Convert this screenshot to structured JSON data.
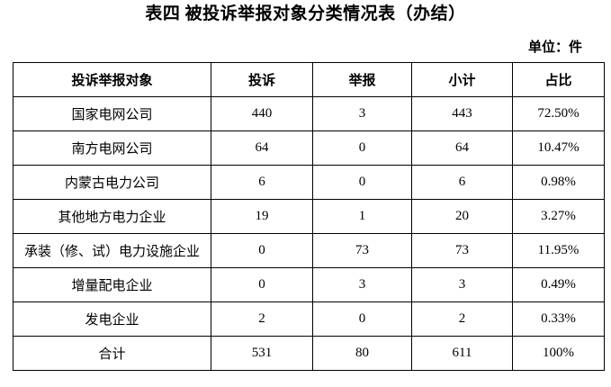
{
  "page": {
    "title": "表四 被投诉举报对象分类情况表（办结）",
    "unit_label": "单位：件"
  },
  "table": {
    "headers": [
      "投诉举报对象",
      "投诉",
      "举报",
      "小计",
      "占比"
    ],
    "rows": [
      [
        "国家电网公司",
        "440",
        "3",
        "443",
        "72.50%"
      ],
      [
        "南方电网公司",
        "64",
        "0",
        "64",
        "10.47%"
      ],
      [
        "内蒙古电力公司",
        "6",
        "0",
        "6",
        "0.98%"
      ],
      [
        "其他地方电力企业",
        "19",
        "1",
        "20",
        "3.27%"
      ],
      [
        "承装（修、试）电力设施企业",
        "0",
        "73",
        "73",
        "11.95%"
      ],
      [
        "增量配电企业",
        "0",
        "3",
        "3",
        "0.49%"
      ],
      [
        "发电企业",
        "2",
        "0",
        "2",
        "0.33%"
      ],
      [
        "合计",
        "531",
        "80",
        "611",
        "100%"
      ]
    ],
    "total_row_label": "合计"
  },
  "colors": {
    "text": "#000000",
    "border": "#000000",
    "background": "#ffffff"
  }
}
